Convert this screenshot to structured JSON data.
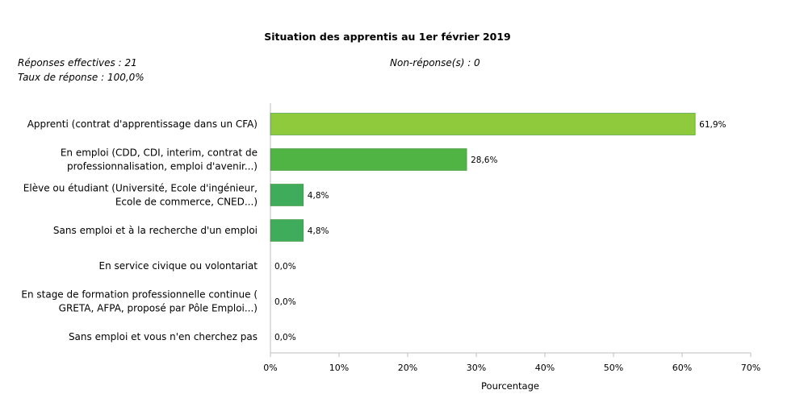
{
  "chart_data": {
    "type": "bar",
    "orientation": "horizontal",
    "title": "Situation des apprentis au 1er février 2019",
    "responses_label": "Réponses effectives : 21",
    "rate_label": "Taux de réponse : 100,0%",
    "nonresponse_label": "Non-réponse(s) : 0",
    "xlabel": "Pourcentage",
    "xlim": [
      0,
      70
    ],
    "xticks": [
      "0%",
      "10%",
      "20%",
      "30%",
      "40%",
      "50%",
      "60%",
      "70%"
    ],
    "categories": [
      [
        "Apprenti (contrat d'apprentissage dans un CFA)"
      ],
      [
        "En emploi (CDD, CDI, interim, contrat de",
        "professionnalisation, emploi d'avenir...)"
      ],
      [
        "Elève ou étudiant (Université, Ecole d'ingénieur,",
        "Ecole de commerce, CNED...)"
      ],
      [
        "Sans emploi et à la recherche d'un emploi"
      ],
      [
        "En service civique ou volontariat"
      ],
      [
        "En stage de formation professionnelle continue (",
        "GRETA, AFPA, proposé par Pôle Emploi...)"
      ],
      [
        "Sans emploi et vous n'en cherchez pas"
      ]
    ],
    "values": [
      61.9,
      28.6,
      4.8,
      4.8,
      0.0,
      0.0,
      0.0
    ],
    "value_labels": [
      "61,9%",
      "28,6%",
      "4,8%",
      "4,8%",
      "0,0%",
      "0,0%",
      "0,0%"
    ],
    "colors": [
      "#8fca3c",
      "#4fb443",
      "#3fac5c",
      "#3fac5c",
      "#3fac5c",
      "#3fac5c",
      "#3fac5c"
    ],
    "grid": false,
    "legend": "none"
  }
}
